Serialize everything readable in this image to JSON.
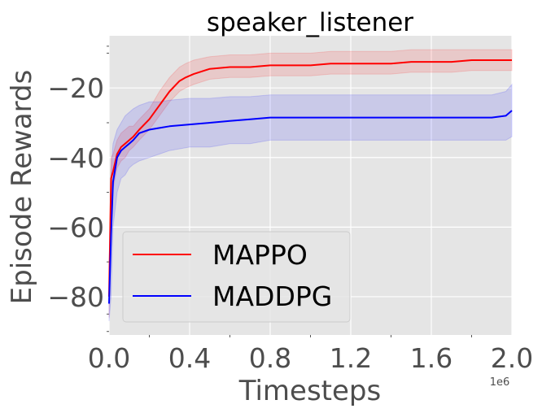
{
  "chart_data": {
    "type": "line",
    "title": "speaker_listener",
    "xlabel": "Timesteps",
    "ylabel": "Episode Rewards",
    "x_scale_label": "1e6",
    "xlim": [
      0.0,
      2.0
    ],
    "ylim": [
      -91,
      -5
    ],
    "x_ticks": [
      0.0,
      0.4,
      0.8,
      1.2,
      1.6,
      2.0
    ],
    "x_tick_labels": [
      "0.0",
      "0.4",
      "0.8",
      "1.2",
      "1.6",
      "2.0"
    ],
    "y_ticks": [
      -80,
      -60,
      -40,
      -20
    ],
    "y_tick_labels": [
      "−80",
      "−60",
      "−40",
      "−20"
    ],
    "grid": true,
    "legend_position": "lower-left",
    "colors": {
      "background": "#e5e5e5",
      "grid": "#ffffff"
    },
    "series": [
      {
        "name": "MAPPO",
        "color": "#ff0000",
        "band_color": "#ff0000",
        "x": [
          0.0,
          0.01,
          0.02,
          0.04,
          0.06,
          0.08,
          0.1,
          0.12,
          0.15,
          0.2,
          0.25,
          0.3,
          0.35,
          0.38,
          0.42,
          0.5,
          0.6,
          0.7,
          0.8,
          0.9,
          1.0,
          1.1,
          1.2,
          1.3,
          1.4,
          1.5,
          1.6,
          1.7,
          1.8,
          1.9,
          2.0
        ],
        "y": [
          -80,
          -46,
          -44,
          -39,
          -37,
          -36,
          -35,
          -34,
          -32,
          -29,
          -25,
          -21,
          -18,
          -17,
          -16,
          -14.5,
          -14,
          -14,
          -13.5,
          -13.5,
          -13.5,
          -13,
          -13,
          -13,
          -13,
          -12.5,
          -12.5,
          -12.5,
          -12,
          -12,
          -12
        ],
        "lower": [
          -86,
          -52,
          -49,
          -43,
          -41,
          -40,
          -38,
          -37,
          -35,
          -32,
          -28,
          -24,
          -21,
          -20,
          -19,
          -17.5,
          -17,
          -17,
          -16.5,
          -16.5,
          -16.5,
          -16,
          -16,
          -16,
          -16,
          -15.5,
          -15.5,
          -15.5,
          -15,
          -15,
          -15
        ],
        "upper": [
          -74,
          -40,
          -39,
          -35,
          -33,
          -32,
          -31,
          -31,
          -29,
          -26,
          -21,
          -17,
          -14,
          -13,
          -12,
          -11,
          -10.5,
          -10.5,
          -10,
          -10,
          -10,
          -9.5,
          -9.5,
          -9.5,
          -9.5,
          -9,
          -9,
          -9,
          -9,
          -9,
          -9
        ]
      },
      {
        "name": "MADDPG",
        "color": "#0000ff",
        "band_color": "#0000ff",
        "x": [
          0.0,
          0.01,
          0.02,
          0.04,
          0.06,
          0.08,
          0.1,
          0.12,
          0.15,
          0.2,
          0.25,
          0.3,
          0.4,
          0.5,
          0.6,
          0.7,
          0.8,
          0.9,
          1.0,
          1.1,
          1.2,
          1.3,
          1.4,
          1.5,
          1.6,
          1.7,
          1.8,
          1.9,
          1.97,
          2.0
        ],
        "y": [
          -82,
          -62,
          -47,
          -40,
          -38,
          -37,
          -36,
          -35,
          -33,
          -32,
          -31.5,
          -31,
          -30.5,
          -30,
          -29.5,
          -29,
          -28.5,
          -28.5,
          -28.5,
          -28.5,
          -28.5,
          -28.5,
          -28.5,
          -28.5,
          -28.5,
          -28.5,
          -28.5,
          -28.5,
          -28,
          -26.5
        ],
        "lower": [
          -87,
          -80,
          -60,
          -50,
          -46,
          -45,
          -43,
          -42,
          -41,
          -40,
          -39,
          -38,
          -37,
          -37,
          -36,
          -36,
          -35,
          -35,
          -35,
          -35,
          -35,
          -35,
          -35,
          -35,
          -35,
          -35,
          -35,
          -35,
          -35,
          -34
        ],
        "upper": [
          -77,
          -44,
          -36,
          -32,
          -30,
          -28,
          -27,
          -26,
          -25,
          -24,
          -24,
          -23.5,
          -23,
          -23,
          -22.5,
          -22.5,
          -22,
          -22,
          -22,
          -22,
          -22,
          -22,
          -22,
          -22,
          -22,
          -22,
          -22,
          -22,
          -21,
          -19
        ]
      }
    ]
  }
}
